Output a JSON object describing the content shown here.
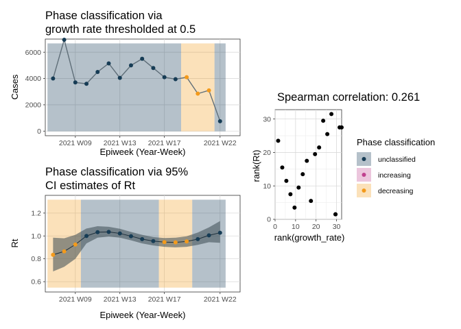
{
  "colors": {
    "unclassified": "#2c4e66",
    "increasing": "#c0418f",
    "decreasing": "#f39a1b",
    "line": "#5f6e78",
    "point_dark": "#163c55",
    "ribbon": "#3a4a52",
    "panel_grid": "#d9d9d9"
  },
  "chart_data": [
    {
      "type": "line",
      "title": [
        "Phase classification via",
        "growth rate thresholded at 0.5"
      ],
      "xlabel": "Epiweek (Year-Week)",
      "ylabel": "Cases",
      "x_tick_labels": [
        "2021 W09",
        "2021 W13",
        "2021 W17",
        "2021 W22"
      ],
      "x_tick_weeks": [
        9,
        13,
        17,
        22
      ],
      "y_ticks": [
        0,
        2000,
        4000,
        6000
      ],
      "xlim": [
        6.3,
        23.8
      ],
      "ylim": [
        -350,
        7000
      ],
      "weeks": [
        7,
        8,
        9,
        10,
        11,
        12,
        13,
        14,
        15,
        16,
        17,
        18,
        19,
        20,
        21,
        22,
        23
      ],
      "values": [
        4000,
        6950,
        3700,
        3600,
        4500,
        5150,
        4050,
        5000,
        5500,
        4800,
        4100,
        3950,
        4100,
        2850,
        3100,
        750,
        null
      ],
      "point_phase": [
        "unclassified",
        "unclassified",
        "unclassified",
        "unclassified",
        "unclassified",
        "unclassified",
        "unclassified",
        "unclassified",
        "unclassified",
        "unclassified",
        "unclassified",
        "unclassified",
        "decreasing",
        "decreasing",
        "decreasing",
        "unclassified"
      ],
      "bands": [
        {
          "phase": "unclassified",
          "from": 6.5,
          "to": 18.5
        },
        {
          "phase": "decreasing",
          "from": 18.5,
          "to": 21.5
        },
        {
          "phase": "unclassified",
          "from": 21.5,
          "to": 22.5
        }
      ]
    },
    {
      "type": "line",
      "title": [
        "Phase classification via 95%",
        "CI estimates of Rt"
      ],
      "xlabel": "Epiweek (Year-Week)",
      "ylabel": "Rt",
      "x_tick_labels": [
        "2021 W09",
        "2021 W13",
        "2021 W17",
        "2021 W22"
      ],
      "x_tick_weeks": [
        9,
        13,
        17,
        22
      ],
      "y_ticks": [
        0.6,
        0.8,
        1.0,
        1.2
      ],
      "y_tick_labels": [
        "0.6",
        "0.8",
        "1.0",
        "1.2"
      ],
      "xlim": [
        6.3,
        23.8
      ],
      "ylim": [
        0.51,
        1.355
      ],
      "weeks": [
        7,
        8,
        9,
        10,
        11,
        12,
        13,
        14,
        15,
        16,
        17,
        18,
        19,
        20,
        21,
        22
      ],
      "values": [
        0.835,
        0.865,
        0.925,
        1.0,
        1.033,
        1.035,
        1.022,
        0.998,
        0.972,
        0.955,
        0.946,
        0.944,
        0.952,
        0.972,
        1.005,
        1.028
      ],
      "lower": [
        0.69,
        0.73,
        0.8,
        0.935,
        0.985,
        0.995,
        0.985,
        0.962,
        0.935,
        0.917,
        0.905,
        0.9,
        0.905,
        0.922,
        0.945,
        0.94
      ],
      "upper": [
        0.985,
        0.98,
        1.01,
        1.065,
        1.085,
        1.08,
        1.063,
        1.035,
        1.01,
        0.99,
        0.982,
        0.985,
        0.997,
        1.03,
        1.075,
        1.13
      ],
      "point_phase": [
        "decreasing",
        "decreasing",
        "decreasing",
        "unclassified",
        "unclassified",
        "unclassified",
        "unclassified",
        "unclassified",
        "unclassified",
        "unclassified",
        "decreasing",
        "decreasing",
        "decreasing",
        "unclassified",
        "unclassified",
        "unclassified"
      ],
      "bands": [
        {
          "phase": "decreasing",
          "from": 6.5,
          "to": 9.5
        },
        {
          "phase": "unclassified",
          "from": 9.5,
          "to": 16.5
        },
        {
          "phase": "decreasing",
          "from": 16.5,
          "to": 19.5
        },
        {
          "phase": "unclassified",
          "from": 19.5,
          "to": 22.5
        }
      ]
    },
    {
      "type": "scatter",
      "title": "Spearman correlation: 0.261",
      "xlabel": "rank(growth_rate)",
      "ylabel": "rank(Rt)",
      "x_ticks": [
        0,
        10,
        20,
        30
      ],
      "y_ticks": [
        0,
        10,
        20,
        30
      ],
      "xlim": [
        0,
        32.5
      ],
      "ylim": [
        0,
        32.8
      ],
      "x": [
        1.5,
        3.5,
        5.5,
        7.5,
        9.5,
        11.5,
        13.5,
        15.5,
        17.5,
        19.5,
        21.5,
        23.5,
        25.5,
        27.5,
        29.5,
        31.5,
        32.5,
        29.5
      ],
      "y": [
        23.5,
        15.5,
        11.5,
        7.5,
        3.5,
        9.5,
        13.5,
        17.5,
        5.5,
        19.5,
        21.5,
        29.5,
        25.5,
        31.5,
        1.5,
        27.5,
        27.5,
        1.5
      ]
    }
  ],
  "legend": {
    "title": "Phase classification",
    "entries": [
      {
        "label": "unclassified",
        "key": "unclassified"
      },
      {
        "label": "increasing",
        "key": "increasing"
      },
      {
        "label": "decreasing",
        "key": "decreasing"
      }
    ]
  }
}
